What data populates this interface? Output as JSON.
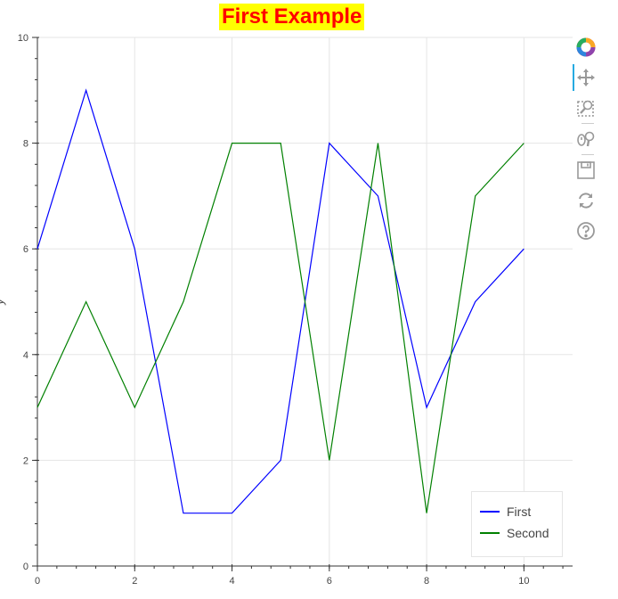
{
  "chart_data": {
    "type": "line",
    "title": "First Example",
    "xlabel": "",
    "ylabel": "y",
    "x": [
      0,
      1,
      2,
      3,
      4,
      5,
      6,
      7,
      8,
      9,
      10
    ],
    "series": [
      {
        "name": "First",
        "color": "#0000ff",
        "values": [
          6,
          9,
          6,
          1,
          1,
          2,
          8,
          7,
          3,
          5,
          6
        ]
      },
      {
        "name": "Second",
        "color": "#008000",
        "values": [
          3,
          5,
          3,
          5,
          8,
          8,
          2,
          8,
          1,
          7,
          8
        ]
      }
    ],
    "xlim": [
      0,
      11
    ],
    "ylim": [
      0,
      10
    ],
    "xticks": [
      "0",
      "2",
      "4",
      "6",
      "8",
      "10"
    ],
    "yticks": [
      "0",
      "2",
      "4",
      "6",
      "8",
      "10"
    ],
    "grid": true,
    "legend_placement": "bottom-right",
    "title_colors": {
      "text": "#ff0000",
      "background": "#ffff00"
    }
  },
  "toolbar": {
    "tools": [
      "bokeh-logo-icon",
      "pan-icon",
      "box-zoom-icon",
      "wheel-zoom-icon",
      "save-icon",
      "reset-icon",
      "help-icon"
    ]
  }
}
